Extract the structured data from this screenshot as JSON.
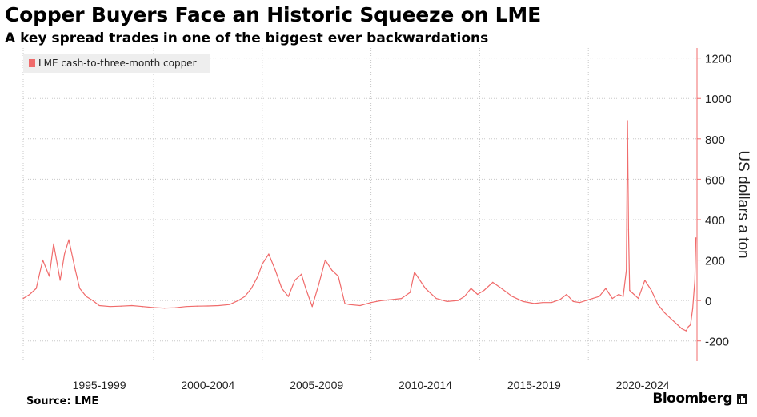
{
  "header": {
    "title": "Copper Buyers Face an Historic Squeeze on LME",
    "subtitle": "A key spread trades in one of the biggest ever backwardations"
  },
  "footer": {
    "source": "Source: LME",
    "brand": "Bloomberg"
  },
  "colors": {
    "series": "#f06b6b",
    "grid": "#c8c8c8",
    "axis": "#f06b6b",
    "legend_bg": "#eeeeee"
  },
  "chart_data": {
    "type": "line",
    "title": "Copper Buyers Face an Historic Squeeze on LME",
    "subtitle": "A key spread trades in one of the biggest ever backwardations",
    "xlabel": "",
    "ylabel": "US dollars a ton",
    "x_range": [
      1994.0,
      2025.0
    ],
    "ylim": [
      -300,
      1250
    ],
    "y_ticks": [
      -200,
      0,
      200,
      400,
      600,
      800,
      1000,
      1200
    ],
    "x_ticks": [
      {
        "label": "1995-1999",
        "value": 1997.5
      },
      {
        "label": "2000-2004",
        "value": 2002.5
      },
      {
        "label": "2005-2009",
        "value": 2007.5
      },
      {
        "label": "2010-2014",
        "value": 2012.5
      },
      {
        "label": "2015-2019",
        "value": 2017.5
      },
      {
        "label": "2020-2024",
        "value": 2022.5
      }
    ],
    "x_gridlines": [
      1994.0,
      2000.0,
      2005.0,
      2010.0,
      2015.0,
      2020.0
    ],
    "grid": true,
    "legend_position": "top-left",
    "series": [
      {
        "name": "LME cash-to-three-month copper",
        "x": [
          1994.0,
          1994.3,
          1994.6,
          1994.9,
          1995.2,
          1995.4,
          1995.7,
          1995.9,
          1996.1,
          1996.4,
          1996.6,
          1996.9,
          1997.2,
          1997.5,
          1998.0,
          1998.5,
          1999.0,
          1999.5,
          2000.0,
          2000.5,
          2001.0,
          2001.5,
          2002.0,
          2002.5,
          2003.0,
          2003.5,
          2003.9,
          2004.2,
          2004.5,
          2004.8,
          2005.0,
          2005.3,
          2005.6,
          2005.9,
          2006.2,
          2006.5,
          2006.8,
          2007.0,
          2007.3,
          2007.6,
          2007.9,
          2008.2,
          2008.5,
          2008.8,
          2009.0,
          2009.5,
          2010.0,
          2010.5,
          2011.0,
          2011.4,
          2011.8,
          2012.0,
          2012.5,
          2013.0,
          2013.5,
          2014.0,
          2014.3,
          2014.6,
          2014.9,
          2015.2,
          2015.6,
          2016.0,
          2016.5,
          2017.0,
          2017.5,
          2017.9,
          2018.3,
          2018.7,
          2019.0,
          2019.3,
          2019.6,
          2019.9,
          2020.2,
          2020.5,
          2020.8,
          2021.1,
          2021.4,
          2021.6,
          2021.75,
          2021.8,
          2021.85,
          2021.9,
          2022.0,
          2022.3,
          2022.6,
          2022.9,
          2023.2,
          2023.5,
          2023.8,
          2024.1,
          2024.3,
          2024.5,
          2024.6,
          2024.7,
          2024.8,
          2024.9,
          2024.95
        ],
        "values": [
          10,
          30,
          60,
          200,
          120,
          280,
          100,
          230,
          300,
          150,
          60,
          20,
          0,
          -25,
          -30,
          -28,
          -25,
          -30,
          -35,
          -38,
          -36,
          -30,
          -28,
          -27,
          -25,
          -20,
          0,
          20,
          60,
          120,
          180,
          230,
          150,
          60,
          20,
          100,
          130,
          60,
          -30,
          80,
          200,
          150,
          120,
          -15,
          -20,
          -25,
          -10,
          0,
          5,
          10,
          40,
          140,
          60,
          10,
          -5,
          0,
          20,
          60,
          30,
          50,
          90,
          60,
          20,
          -5,
          -15,
          -10,
          -10,
          5,
          30,
          -5,
          -10,
          0,
          10,
          20,
          60,
          10,
          30,
          20,
          150,
          890,
          350,
          50,
          40,
          10,
          100,
          50,
          -20,
          -60,
          -90,
          -120,
          -140,
          -150,
          -130,
          -120,
          -40,
          100,
          310
        ]
      }
    ]
  }
}
